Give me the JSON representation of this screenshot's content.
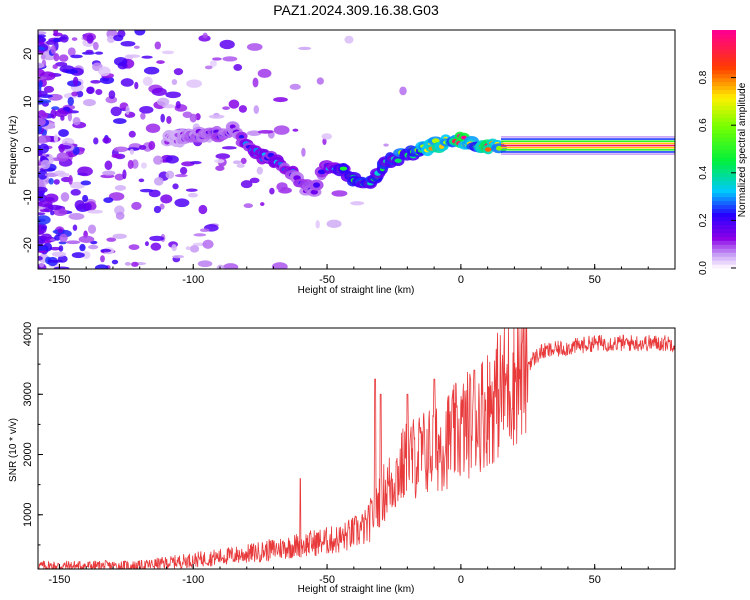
{
  "title": "PAZ1.2024.309.16.38.G03",
  "chart_data": [
    {
      "type": "heatmap",
      "xlabel": "Height of straight line (km)",
      "ylabel": "Frequency (Hz)",
      "xlim": [
        -158,
        80
      ],
      "ylim": [
        -25,
        25
      ],
      "x_ticks": [
        -150,
        -100,
        -50,
        0,
        50
      ],
      "y_ticks": [
        -20,
        -10,
        0,
        10,
        20
      ],
      "colorbar": {
        "label": "Normalized spectral amplitude",
        "range": [
          0,
          1
        ],
        "ticks": [
          0.0,
          0.2,
          0.4,
          0.6,
          0.8
        ],
        "colormap": "rainbow (white-violet-blue-cyan-green-yellow-red-magenta)"
      },
      "ridge": [
        {
          "x": -110,
          "y": 2,
          "amp": 0.1
        },
        {
          "x": -100,
          "y": 3,
          "amp": 0.15
        },
        {
          "x": -90,
          "y": 3,
          "amp": 0.2
        },
        {
          "x": -85,
          "y": 5,
          "amp": 0.15
        },
        {
          "x": -80,
          "y": 1,
          "amp": 0.25
        },
        {
          "x": -75,
          "y": -1,
          "amp": 0.3
        },
        {
          "x": -70,
          "y": -2,
          "amp": 0.3
        },
        {
          "x": -65,
          "y": -4,
          "amp": 0.25
        },
        {
          "x": -60,
          "y": -7,
          "amp": 0.2
        },
        {
          "x": -55,
          "y": -9,
          "amp": 0.15
        },
        {
          "x": -50,
          "y": -3,
          "amp": 0.3
        },
        {
          "x": -45,
          "y": -4,
          "amp": 0.4
        },
        {
          "x": -40,
          "y": -6,
          "amp": 0.45
        },
        {
          "x": -35,
          "y": -7,
          "amp": 0.5
        },
        {
          "x": -30,
          "y": -4,
          "amp": 0.45
        },
        {
          "x": -25,
          "y": -2,
          "amp": 0.5
        },
        {
          "x": -20,
          "y": -1,
          "amp": 0.55
        },
        {
          "x": -15,
          "y": 0,
          "amp": 0.6
        },
        {
          "x": -10,
          "y": 1,
          "amp": 0.85
        },
        {
          "x": -5,
          "y": 1.5,
          "amp": 0.7
        },
        {
          "x": 0,
          "y": 2,
          "amp": 0.9
        },
        {
          "x": 5,
          "y": 1,
          "amp": 0.7
        },
        {
          "x": 10,
          "y": 0.5,
          "amp": 0.8
        },
        {
          "x": 15,
          "y": 1,
          "amp": 0.85
        },
        {
          "x": 80,
          "y": 1,
          "amp": 1.0
        }
      ]
    },
    {
      "type": "line",
      "xlabel": "Height of straight line (km)",
      "ylabel": "SNR (10 * v/v)",
      "xlim": [
        -158,
        80
      ],
      "ylim": [
        100,
        4100
      ],
      "x_ticks": [
        -150,
        -100,
        -50,
        0,
        50
      ],
      "y_ticks": [
        1000,
        2000,
        3000,
        4000
      ],
      "color": "#e8393b",
      "trend": [
        {
          "x": -158,
          "y": 150
        },
        {
          "x": -120,
          "y": 150
        },
        {
          "x": -100,
          "y": 250
        },
        {
          "x": -80,
          "y": 350
        },
        {
          "x": -60,
          "y": 500
        },
        {
          "x": -45,
          "y": 600
        },
        {
          "x": -35,
          "y": 800
        },
        {
          "x": -30,
          "y": 1300
        },
        {
          "x": -20,
          "y": 1900
        },
        {
          "x": -10,
          "y": 2100
        },
        {
          "x": 0,
          "y": 2400
        },
        {
          "x": 10,
          "y": 2800
        },
        {
          "x": 20,
          "y": 3300
        },
        {
          "x": 30,
          "y": 3700
        },
        {
          "x": 50,
          "y": 3850
        },
        {
          "x": 80,
          "y": 3850
        }
      ],
      "spikes": [
        {
          "x": -60,
          "y": 1600
        },
        {
          "x": -32,
          "y": 3250
        },
        {
          "x": -30,
          "y": 3000
        },
        {
          "x": -20,
          "y": 3000
        },
        {
          "x": -10,
          "y": 3250
        },
        {
          "x": 5,
          "y": 3400
        }
      ]
    }
  ]
}
